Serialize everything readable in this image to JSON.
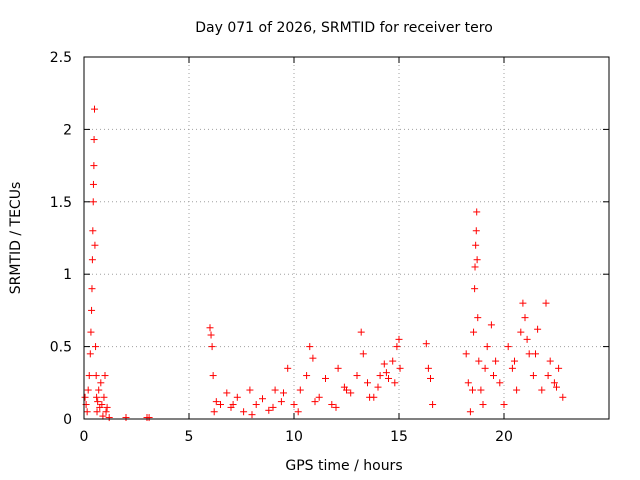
{
  "chart_data": {
    "type": "scatter",
    "title": "Day 071 of 2026, SRMTID for receiver tero",
    "xlabel": "GPS time / hours",
    "ylabel": "SRMTID / TECUs",
    "xlim": [
      0,
      25
    ],
    "ylim": [
      0,
      2.5
    ],
    "xticks": [
      0,
      5,
      10,
      15,
      20
    ],
    "xtick_labels": [
      "0",
      "5",
      "10",
      "15",
      "20"
    ],
    "yticks": [
      0,
      0.5,
      1,
      1.5,
      2,
      2.5
    ],
    "ytick_labels": [
      "0",
      "0.5",
      "1",
      "1.5",
      "2",
      "2.5"
    ],
    "grid": true,
    "marker": "plus",
    "color": "#ff0000",
    "series": [
      {
        "name": "SRMTID",
        "x": [
          0.05,
          0.1,
          0.15,
          0.2,
          0.25,
          0.3,
          0.33,
          0.36,
          0.38,
          0.4,
          0.42,
          0.44,
          0.45,
          0.47,
          0.48,
          0.5,
          0.52,
          0.55,
          0.58,
          0.6,
          0.62,
          0.65,
          0.7,
          0.75,
          0.8,
          0.85,
          0.9,
          0.95,
          1.0,
          1.05,
          1.1,
          1.2,
          2.0,
          3.0,
          3.1,
          6.0,
          6.05,
          6.1,
          6.15,
          6.3,
          6.5,
          6.8,
          7.0,
          7.3,
          7.6,
          7.9,
          8.2,
          8.5,
          8.8,
          9.1,
          9.4,
          9.7,
          10.0,
          10.3,
          10.6,
          10.75,
          10.9,
          11.2,
          11.5,
          11.8,
          12.1,
          12.4,
          12.7,
          13.0,
          13.2,
          13.3,
          13.5,
          13.8,
          14.1,
          14.3,
          14.5,
          14.7,
          14.9,
          15.0,
          15.05,
          16.3,
          16.4,
          16.5,
          16.6,
          18.2,
          18.3,
          18.4,
          18.5,
          18.55,
          18.6,
          18.62,
          18.65,
          18.68,
          18.7,
          18.72,
          18.75,
          18.8,
          18.9,
          19.0,
          19.2,
          19.4,
          19.6,
          19.8,
          20.0,
          20.2,
          20.4,
          20.6,
          20.8,
          20.9,
          21.0,
          21.1,
          21.2,
          21.4,
          21.6,
          21.8,
          22.0,
          22.2,
          22.4,
          22.6,
          22.8,
          6.2,
          7.1,
          8.0,
          9.0,
          9.5,
          10.2,
          11.0,
          12.0,
          12.5,
          13.6,
          14.0,
          14.4,
          14.8,
          19.1,
          19.5,
          20.5,
          21.5,
          22.1,
          22.5
        ],
        "y": [
          0.15,
          0.1,
          0.05,
          0.2,
          0.3,
          0.45,
          0.6,
          0.75,
          0.9,
          1.1,
          1.3,
          1.5,
          1.62,
          1.75,
          1.93,
          2.14,
          1.2,
          0.5,
          0.3,
          0.15,
          0.05,
          0.12,
          0.2,
          0.08,
          0.25,
          0.1,
          0.02,
          0.15,
          0.3,
          0.05,
          0.08,
          0.01,
          0.01,
          0.01,
          0.01,
          0.63,
          0.58,
          0.5,
          0.3,
          0.12,
          0.1,
          0.18,
          0.08,
          0.15,
          0.05,
          0.2,
          0.1,
          0.14,
          0.06,
          0.2,
          0.12,
          0.35,
          0.1,
          0.2,
          0.3,
          0.5,
          0.42,
          0.15,
          0.28,
          0.1,
          0.35,
          0.22,
          0.18,
          0.3,
          0.6,
          0.45,
          0.25,
          0.15,
          0.3,
          0.38,
          0.28,
          0.4,
          0.5,
          0.55,
          0.35,
          0.52,
          0.35,
          0.28,
          0.1,
          0.45,
          0.25,
          0.05,
          0.2,
          0.6,
          0.9,
          1.05,
          1.2,
          1.3,
          1.43,
          1.1,
          0.7,
          0.4,
          0.2,
          0.1,
          0.5,
          0.65,
          0.4,
          0.25,
          0.1,
          0.5,
          0.35,
          0.2,
          0.6,
          0.8,
          0.7,
          0.55,
          0.45,
          0.3,
          0.62,
          0.2,
          0.8,
          0.4,
          0.25,
          0.35,
          0.15,
          0.05,
          0.1,
          0.03,
          0.08,
          0.18,
          0.05,
          0.12,
          0.08,
          0.2,
          0.15,
          0.22,
          0.32,
          0.25,
          0.35,
          0.3,
          0.4,
          0.45,
          0.3,
          0.22
        ]
      }
    ]
  }
}
